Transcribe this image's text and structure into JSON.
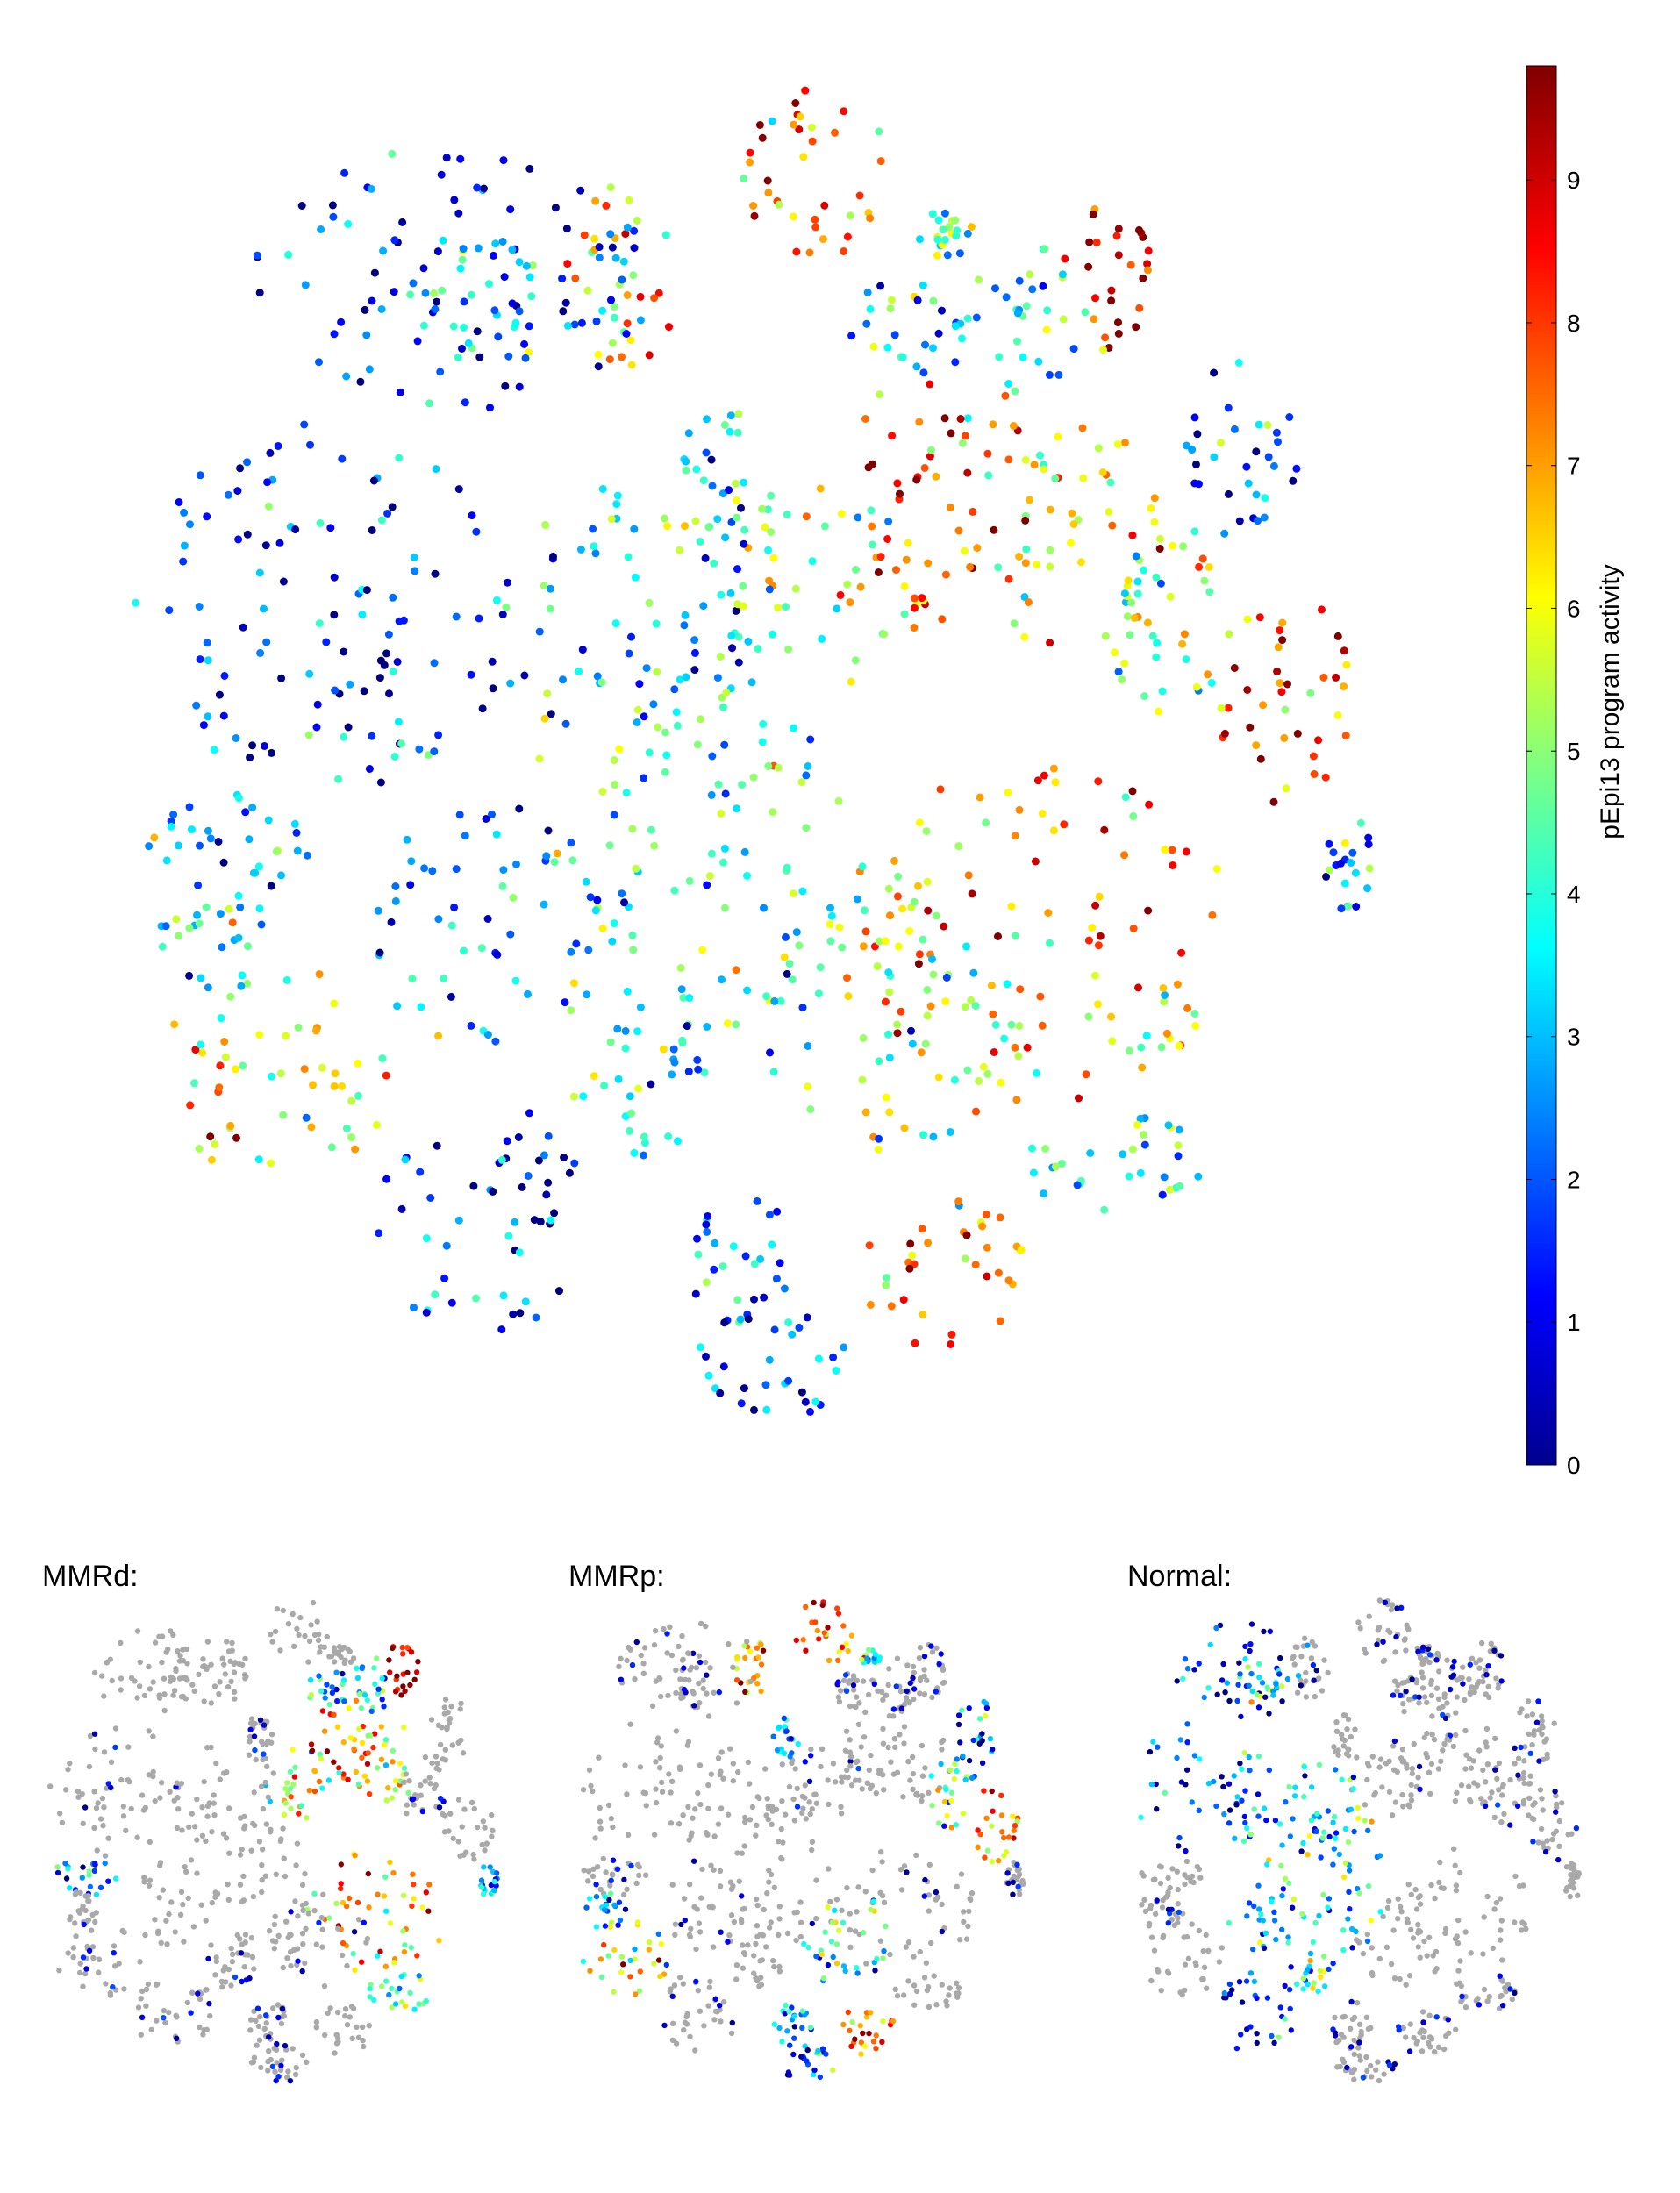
{
  "chart_data": {
    "type": "scatter",
    "colorbar": {
      "label": "pEpi13 program activity",
      "ticks": [
        0,
        1,
        2,
        3,
        4,
        5,
        6,
        7,
        8,
        9
      ],
      "range": [
        0,
        9.8
      ],
      "colormap": "jet"
    },
    "background_color": "#a9a9a9",
    "panels": [
      {
        "label": "",
        "role": "main",
        "highlight": "all"
      },
      {
        "label": "MMRd:",
        "role": "subset",
        "highlight": "MMRd"
      },
      {
        "label": "MMRp:",
        "role": "subset",
        "highlight": "MMRp"
      },
      {
        "label": "Normal:",
        "role": "subset",
        "highlight": "Normal"
      }
    ],
    "clusters": [
      {
        "cx": 0.62,
        "cy": 0.09,
        "rx": 0.07,
        "ry": 0.07,
        "value": 7.5,
        "group": "MMRp"
      },
      {
        "cx": 0.45,
        "cy": 0.17,
        "rx": 0.05,
        "ry": 0.07,
        "value": 6.5,
        "group": "MMRp"
      },
      {
        "cx": 0.69,
        "cy": 0.21,
        "rx": 0.05,
        "ry": 0.04,
        "value": 2.5,
        "group": "MMRd"
      },
      {
        "cx": 0.72,
        "cy": 0.14,
        "rx": 0.03,
        "ry": 0.02,
        "value": 4.5,
        "group": "MMRp"
      },
      {
        "cx": 0.79,
        "cy": 0.2,
        "rx": 0.05,
        "ry": 0.06,
        "value": 3.8,
        "group": "MMRd"
      },
      {
        "cx": 0.86,
        "cy": 0.17,
        "rx": 0.04,
        "ry": 0.06,
        "value": 9.2,
        "group": "MMRd"
      },
      {
        "cx": 0.97,
        "cy": 0.3,
        "rx": 0.05,
        "ry": 0.07,
        "value": 2.0,
        "group": "MMRp"
      },
      {
        "cx": 0.62,
        "cy": 0.4,
        "rx": 0.09,
        "ry": 0.08,
        "value": 5.8,
        "group": "MMRd"
      },
      {
        "cx": 0.72,
        "cy": 0.33,
        "rx": 0.08,
        "ry": 0.1,
        "value": 7.8,
        "group": "MMRd"
      },
      {
        "cx": 0.83,
        "cy": 0.37,
        "rx": 0.08,
        "ry": 0.09,
        "value": 6.0,
        "group": "MMRd"
      },
      {
        "cx": 0.91,
        "cy": 0.42,
        "rx": 0.06,
        "ry": 0.08,
        "value": 4.8,
        "group": "MMRp"
      },
      {
        "cx": 1.01,
        "cy": 0.49,
        "rx": 0.06,
        "ry": 0.08,
        "value": 7.5,
        "group": "MMRp"
      },
      {
        "cx": 0.8,
        "cy": 0.67,
        "rx": 0.17,
        "ry": 0.13,
        "value": 7.0,
        "group": "MMRd"
      },
      {
        "cx": 0.67,
        "cy": 0.73,
        "rx": 0.11,
        "ry": 0.1,
        "value": 4.6,
        "group": "MMRp"
      },
      {
        "cx": 0.86,
        "cy": 0.84,
        "rx": 0.08,
        "ry": 0.04,
        "value": 4.0,
        "group": "MMRd"
      },
      {
        "cx": 0.72,
        "cy": 0.92,
        "rx": 0.07,
        "ry": 0.06,
        "value": 7.2,
        "group": "MMRp"
      },
      {
        "cx": 0.55,
        "cy": 0.91,
        "rx": 0.05,
        "ry": 0.05,
        "value": 3.0,
        "group": "MMRp"
      },
      {
        "cx": 0.58,
        "cy": 0.99,
        "rx": 0.07,
        "ry": 0.04,
        "value": 2.0,
        "group": "MMRp"
      },
      {
        "cx": 1.06,
        "cy": 0.61,
        "rx": 0.02,
        "ry": 0.04,
        "value": 2.5,
        "group": "MMRd"
      },
      {
        "cx": 0.53,
        "cy": 0.31,
        "rx": 0.03,
        "ry": 0.05,
        "value": 3.0,
        "group": "MMRp"
      },
      {
        "cx": 0.31,
        "cy": 0.17,
        "rx": 0.17,
        "ry": 0.1,
        "value": 1.2,
        "group": "Normal"
      },
      {
        "cx": 0.33,
        "cy": 0.19,
        "rx": 0.06,
        "ry": 0.06,
        "value": 3.5,
        "group": "Normal"
      },
      {
        "cx": 0.2,
        "cy": 0.42,
        "rx": 0.16,
        "ry": 0.14,
        "value": 1.6,
        "group": "Normal"
      },
      {
        "cx": 0.45,
        "cy": 0.44,
        "rx": 0.13,
        "ry": 0.12,
        "value": 3.2,
        "group": "Normal"
      },
      {
        "cx": 0.53,
        "cy": 0.6,
        "rx": 0.11,
        "ry": 0.16,
        "value": 3.9,
        "group": "Normal"
      },
      {
        "cx": 0.34,
        "cy": 0.66,
        "rx": 0.1,
        "ry": 0.1,
        "value": 2.6,
        "group": "Normal"
      },
      {
        "cx": 0.13,
        "cy": 0.6,
        "rx": 0.08,
        "ry": 0.04,
        "value": 2.2,
        "group": "MMRd"
      },
      {
        "cx": 0.11,
        "cy": 0.67,
        "rx": 0.05,
        "ry": 0.04,
        "value": 3.5,
        "group": "MMRp"
      },
      {
        "cx": 0.16,
        "cy": 0.77,
        "rx": 0.1,
        "ry": 0.08,
        "value": 5.8,
        "group": "MMRp"
      },
      {
        "cx": 0.33,
        "cy": 0.88,
        "rx": 0.09,
        "ry": 0.09,
        "value": 1.6,
        "group": "Normal"
      },
      {
        "cx": 0.46,
        "cy": 0.78,
        "rx": 0.06,
        "ry": 0.06,
        "value": 4.0,
        "group": "Normal"
      }
    ]
  }
}
